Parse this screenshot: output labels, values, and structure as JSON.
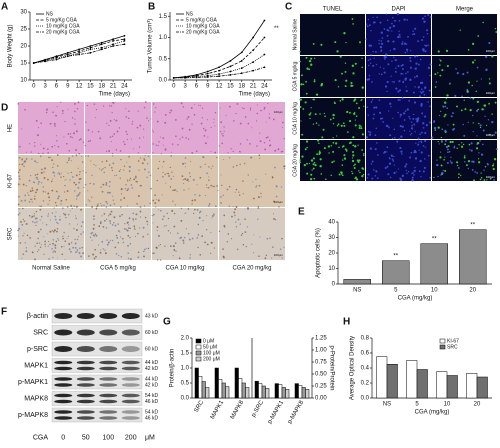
{
  "panel_labels": [
    "A",
    "B",
    "C",
    "D",
    "E",
    "F",
    "G",
    "H"
  ],
  "chart_data": [
    {
      "type": "line",
      "ylabel": "Body Weight (g)",
      "xlabel": "Time (days)",
      "x": [
        0,
        3,
        6,
        9,
        12,
        15,
        18,
        21,
        24
      ],
      "xlim": [
        -1,
        26
      ],
      "xticks": [
        0,
        3,
        6,
        9,
        12,
        15,
        18,
        21,
        24
      ],
      "ylim": [
        10,
        30
      ],
      "yticks": [
        10,
        15,
        20,
        25,
        30
      ],
      "series": [
        {
          "name": "NS",
          "color": "#000000",
          "style": "solid",
          "values": [
            15,
            16,
            17,
            18,
            19,
            20,
            21,
            22,
            23
          ]
        },
        {
          "name": "5 mg/Kg CGA",
          "color": "#000000",
          "style": "dashed",
          "values": [
            15,
            15.8,
            16.8,
            17.5,
            18.5,
            19.5,
            20.5,
            21.5,
            22
          ]
        },
        {
          "name": "10 mg/Kg CGA",
          "color": "#000000",
          "style": "dotted",
          "values": [
            15,
            15.5,
            16.5,
            17,
            18,
            19,
            19.5,
            20.5,
            21.5
          ]
        },
        {
          "name": "20 mg/Kg CGA",
          "color": "#000000",
          "style": "dashdot",
          "values": [
            15,
            15.5,
            16,
            17,
            17.5,
            18,
            19,
            20,
            20.5
          ]
        }
      ]
    },
    {
      "type": "line",
      "ylabel": "Tumor Volume (cm³)",
      "xlabel": "Time (days)",
      "annotation": "**",
      "x": [
        0,
        3,
        6,
        9,
        12,
        15,
        18,
        21,
        24
      ],
      "xlim": [
        -1,
        26
      ],
      "xticks": [
        0,
        3,
        6,
        9,
        12,
        15,
        18,
        21,
        24
      ],
      "ylim": [
        0,
        1.6
      ],
      "yticks": [
        {
          "value": 0,
          "label": "0.0"
        },
        {
          "value": 0.5,
          "label": "0.5"
        },
        {
          "value": 1,
          "label": "1.0"
        },
        {
          "value": 1.5,
          "label": "1.5"
        }
      ],
      "series": [
        {
          "name": "NS",
          "color": "#000000",
          "style": "solid",
          "values": [
            0.05,
            0.08,
            0.12,
            0.2,
            0.3,
            0.45,
            0.65,
            1.0,
            1.4
          ]
        },
        {
          "name": "5 mg/Kg CGA",
          "color": "#000000",
          "style": "dashed",
          "values": [
            0.05,
            0.07,
            0.1,
            0.15,
            0.22,
            0.32,
            0.45,
            0.7,
            1.0
          ]
        },
        {
          "name": "10 mg/Kg CGA",
          "color": "#000000",
          "style": "dotted",
          "values": [
            0.05,
            0.06,
            0.08,
            0.1,
            0.14,
            0.2,
            0.28,
            0.42,
            0.6
          ]
        },
        {
          "name": "20 mg/Kg CGA",
          "color": "#000000",
          "style": "dashdot",
          "values": [
            0.05,
            0.05,
            0.06,
            0.07,
            0.09,
            0.12,
            0.16,
            0.22,
            0.3
          ]
        }
      ]
    },
    {
      "type": "bar",
      "ylabel": "Apoptotic cells (%)",
      "xlabel": "CGA (mg/kg)",
      "categories": [
        "NS",
        "5",
        "10",
        "20"
      ],
      "ylim": [
        0,
        40
      ],
      "yticks": [
        0,
        10,
        20,
        30,
        40
      ],
      "series": [
        {
          "color": "#8c8c8c",
          "values": [
            3,
            15,
            26,
            35
          ],
          "marks": [
            null,
            "**",
            "**",
            "**"
          ]
        }
      ]
    },
    {
      "type": "bar",
      "ylabel": "Protein/β-actin",
      "categories": [
        "SRC",
        "MAPK1",
        "MAPK8"
      ],
      "ylim": [
        0,
        2
      ],
      "yticks": [
        {
          "value": 0,
          "label": "0.0"
        },
        {
          "value": 0.5,
          "label": "0.5"
        },
        {
          "value": 1,
          "label": "1.0"
        },
        {
          "value": 1.5,
          "label": "1.5"
        },
        {
          "value": 2,
          "label": "2.0"
        }
      ],
      "series": [
        {
          "name": "0 μM",
          "color": "#000000",
          "values": [
            1.0,
            1.0,
            1.0
          ]
        },
        {
          "name": "50 μM",
          "color": "#ffffff",
          "values": [
            0.72,
            0.62,
            0.65
          ]
        },
        {
          "name": "100 μM",
          "color": "#9a9a9a",
          "values": [
            0.55,
            0.5,
            0.5
          ]
        },
        {
          "name": "200 μM",
          "color": "#d0d0d0",
          "values": [
            0.35,
            0.38,
            0.35
          ]
        }
      ]
    },
    {
      "type": "bar",
      "y2label": "p-Protein/Protein",
      "categories": [
        "p-SRC",
        "p-MAPK1",
        "p-MAPK8"
      ],
      "y2lim": [
        0,
        1.25
      ],
      "y2ticks": [
        {
          "value": 0,
          "label": "0.00"
        },
        {
          "value": 0.25,
          "label": "0.25"
        },
        {
          "value": 0.5,
          "label": "0.50"
        },
        {
          "value": 0.75,
          "label": "0.75"
        },
        {
          "value": 1,
          "label": "1.00"
        },
        {
          "value": 1.25,
          "label": "1.25"
        }
      ],
      "series": [
        {
          "color": "#000000",
          "axis": "y2",
          "values": [
            0.35,
            0.3,
            0.3
          ]
        },
        {
          "color": "#ffffff",
          "axis": "y2",
          "values": [
            0.3,
            0.28,
            0.26
          ]
        },
        {
          "color": "#9a9a9a",
          "axis": "y2",
          "values": [
            0.25,
            0.22,
            0.22
          ]
        },
        {
          "color": "#d0d0d0",
          "axis": "y2",
          "values": [
            0.2,
            0.18,
            0.18
          ]
        }
      ]
    },
    {
      "type": "bar",
      "ylabel": "Average Optical Density",
      "xlabel": "CGA (mg/kg)",
      "categories": [
        "NS",
        "5",
        "10",
        "20"
      ],
      "ylim": [
        0,
        0.8
      ],
      "yticks": [
        {
          "value": 0,
          "label": "0.0"
        },
        {
          "value": 0.2,
          "label": "0.2"
        },
        {
          "value": 0.4,
          "label": "0.4"
        },
        {
          "value": 0.6,
          "label": "0.6"
        },
        {
          "value": 0.8,
          "label": "0.8"
        }
      ],
      "series": [
        {
          "name": "KI-67",
          "color": "#ffffff",
          "values": [
            0.55,
            0.5,
            0.35,
            0.33
          ]
        },
        {
          "name": "SRC",
          "color": "#707070",
          "values": [
            0.45,
            0.38,
            0.3,
            0.28
          ]
        }
      ]
    }
  ],
  "tunel": {
    "columns": [
      "TUNEL",
      "DAPI",
      "Merge"
    ],
    "rows": [
      "Normal Saline",
      "CGA 5 mg/kg",
      "CGA 10 mg/kg",
      "CGA 20 mg/kg"
    ]
  },
  "histology": {
    "rows": [
      "HE",
      "Ki-67",
      "SRC"
    ],
    "columns": [
      "Normal Saline",
      "CGA 5 mg/kg",
      "CGA 10 mg/kg",
      "CGA 20 mg/kg"
    ]
  },
  "scale_bar": "100μm",
  "blot": {
    "rows": [
      {
        "name": "β-actin",
        "kd": [
          "43 kD"
        ]
      },
      {
        "name": "SRC",
        "kd": [
          "60 kD"
        ]
      },
      {
        "name": "p-SRC",
        "kd": [
          "60 kD"
        ]
      },
      {
        "name": "MAPK1",
        "kd": [
          "44 kD",
          "42 kD"
        ]
      },
      {
        "name": "p-MAPK1",
        "kd": [
          "44 kD",
          "42 kD"
        ]
      },
      {
        "name": "MAPK8",
        "kd": [
          "54 kD",
          "46 kD"
        ]
      },
      {
        "name": "p-MAPK8",
        "kd": [
          "54 kD",
          "46 kD"
        ]
      }
    ],
    "treatment": "CGA",
    "doses": [
      "0",
      "50",
      "100",
      "200"
    ],
    "unit": "μM"
  }
}
